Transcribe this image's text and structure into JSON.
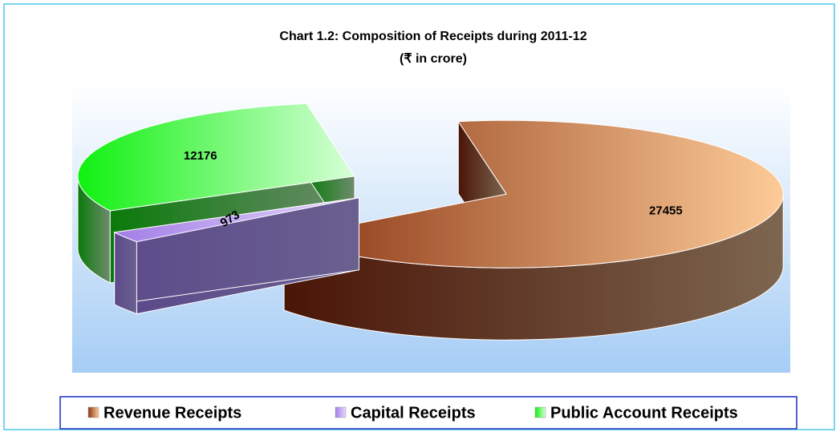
{
  "chart_data": {
    "type": "pie",
    "title": "Chart 1.2: Composition of Receipts during 2011-12",
    "subtitle": "(₹ in crore)",
    "categories": [
      "Revenue Receipts",
      "Capital Receipts",
      "Public Account Receipts"
    ],
    "values": [
      27455,
      973,
      12176
    ],
    "colors": [
      "#a0522d",
      "#b48cf0",
      "#2ee62e"
    ],
    "legend": "bottom"
  }
}
